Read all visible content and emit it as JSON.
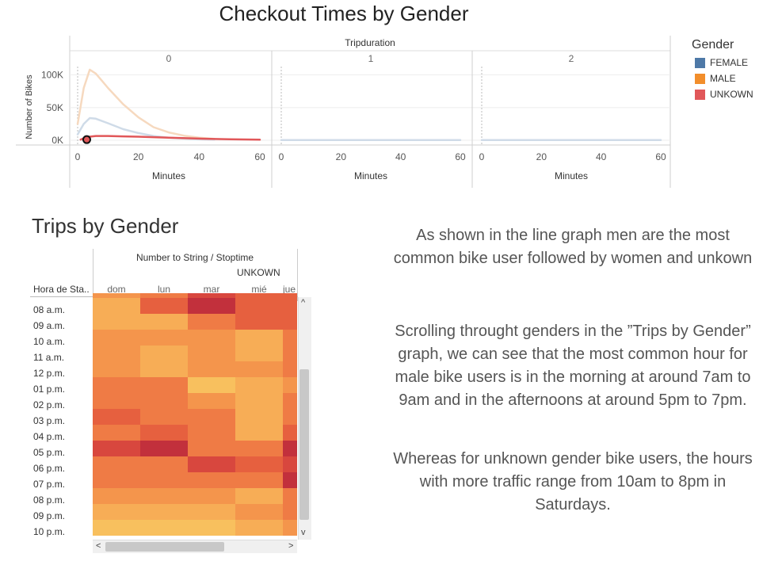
{
  "top_chart": {
    "title": "Checkout Times by Gender",
    "column_field": "Tripduration",
    "panel_labels": [
      "0",
      "1",
      "2"
    ],
    "y_axis_label": "Number of Bikes",
    "x_axis_label": "Minutes",
    "y_ticks": [
      "100K",
      "50K",
      "0K"
    ],
    "x_ticks": [
      "0",
      "20",
      "40",
      "60"
    ]
  },
  "legend": {
    "title": "Gender",
    "items": [
      {
        "label": "FEMALE",
        "color": "#4e79a7"
      },
      {
        "label": "MALE",
        "color": "#f28e2b"
      },
      {
        "label": "UNKOWN",
        "color": "#e15759"
      }
    ]
  },
  "heatmap": {
    "title": "Trips by Gender",
    "caption": "Number to String / Stoptime",
    "series_label": "UNKOWN",
    "row_header": "Hora de Sta..",
    "columns": [
      "dom",
      "lun",
      "mar",
      "mié",
      "jue"
    ],
    "rows": [
      "08 a.m.",
      "09 a.m.",
      "10 a.m.",
      "11 a.m.",
      "12 p.m.",
      "01 p.m.",
      "02 p.m.",
      "03 p.m.",
      "04 p.m.",
      "05 p.m.",
      "06 p.m.",
      "07 p.m.",
      "08 p.m.",
      "09 p.m.",
      "10 p.m."
    ],
    "palette": [
      "#f8c05e",
      "#f7ad56",
      "#f4954c",
      "#ef7b45",
      "#e6603f",
      "#d8473e",
      "#c2303c"
    ]
  },
  "text": {
    "p1": "As shown in the line graph men are the most common bike user followed by women and unkown",
    "p2": "Scrolling throught genders in the ”Trips by Gender” graph, we can see that  the most common hour for male bike users is in the morning at around 7am to 9am and in the afternoons at around 5pm to 7pm.",
    "p3": "Whereas for unknown gender bike users, the hours with more traffic range from 10am to 8pm in Saturdays."
  },
  "chart_data": [
    {
      "type": "line",
      "title": "Checkout Times by Gender",
      "xlabel": "Minutes",
      "ylabel": "Number of Bikes",
      "column_field": "Tripduration",
      "panels": [
        "0",
        "1",
        "2"
      ],
      "xlim": [
        0,
        60
      ],
      "ylim": [
        0,
        120000
      ],
      "highlighted_series": "UNKOWN",
      "series": [
        {
          "name": "MALE",
          "panel": "0",
          "x": [
            0,
            2,
            4,
            6,
            10,
            15,
            20,
            25,
            30,
            35,
            40,
            45
          ],
          "y": [
            25000,
            80000,
            108000,
            102000,
            80000,
            55000,
            35000,
            20000,
            12000,
            7000,
            4000,
            2000
          ]
        },
        {
          "name": "FEMALE",
          "panel": "0",
          "x": [
            0,
            2,
            4,
            6,
            10,
            15,
            20,
            25,
            30,
            35,
            40,
            45
          ],
          "y": [
            9000,
            25000,
            34000,
            33000,
            26000,
            17000,
            11000,
            6500,
            4000,
            2500,
            1500,
            800
          ]
        },
        {
          "name": "UNKOWN",
          "panel": "0",
          "x": [
            1,
            3,
            6,
            10,
            15,
            20,
            30,
            40,
            50,
            60
          ],
          "y": [
            1000,
            5000,
            6500,
            6500,
            6000,
            5500,
            4000,
            2500,
            1500,
            800
          ]
        },
        {
          "name": "FEMALE",
          "panel": "1",
          "x": [
            0,
            60
          ],
          "y": [
            200,
            200
          ]
        },
        {
          "name": "FEMALE",
          "panel": "2",
          "x": [
            0,
            60
          ],
          "y": [
            200,
            200
          ]
        }
      ]
    },
    {
      "type": "heatmap",
      "title": "Trips by Gender",
      "series": "UNKOWN",
      "columns": [
        "dom",
        "lun",
        "mar",
        "mié",
        "jue"
      ],
      "rows": [
        "08 a.m.",
        "09 a.m.",
        "10 a.m.",
        "11 a.m.",
        "12 p.m.",
        "01 p.m.",
        "02 p.m.",
        "03 p.m.",
        "04 p.m.",
        "05 p.m.",
        "06 p.m.",
        "07 p.m.",
        "08 p.m.",
        "09 p.m.",
        "10 p.m."
      ],
      "intensity_levels": [
        [
          1,
          4,
          6,
          4,
          4
        ],
        [
          1,
          1,
          3,
          4,
          4
        ],
        [
          2,
          2,
          2,
          1,
          3
        ],
        [
          2,
          1,
          2,
          1,
          3
        ],
        [
          2,
          1,
          2,
          2,
          3
        ],
        [
          3,
          3,
          0,
          1,
          2
        ],
        [
          3,
          3,
          2,
          1,
          3
        ],
        [
          4,
          3,
          3,
          1,
          3
        ],
        [
          3,
          4,
          3,
          1,
          4
        ],
        [
          5,
          6,
          3,
          3,
          6
        ],
        [
          3,
          3,
          5,
          4,
          5
        ],
        [
          3,
          3,
          3,
          3,
          6
        ],
        [
          2,
          2,
          2,
          1,
          3
        ],
        [
          1,
          1,
          1,
          2,
          3
        ],
        [
          0,
          0,
          0,
          1,
          2
        ]
      ]
    }
  ]
}
